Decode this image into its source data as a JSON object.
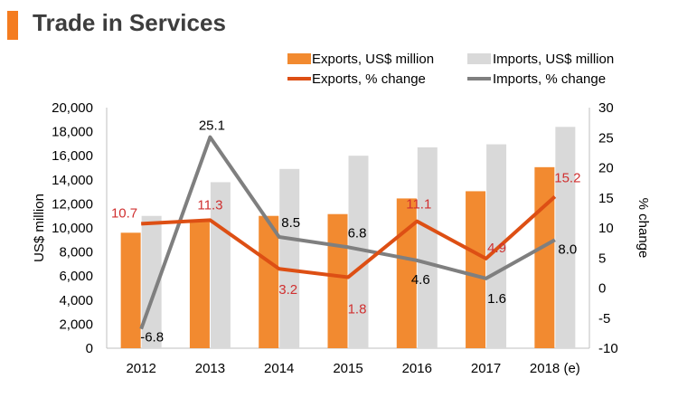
{
  "page": {
    "title": "Trade in Services"
  },
  "colors": {
    "exports": "#f28a30",
    "imports": "#d9d9d9",
    "exports_line": "#dd4f14",
    "imports_line": "#7f7f7f",
    "accent": "#f47c20",
    "label_red": "#d03030"
  },
  "chart_data": {
    "type": "bar",
    "categories": [
      "2012",
      "2013",
      "2014",
      "2015",
      "2016",
      "2017",
      "2018 (e)"
    ],
    "series": [
      {
        "name": "Exports, US$ million",
        "type": "bar",
        "axis": "left",
        "values": [
          9600,
          10650,
          11000,
          11150,
          12450,
          13050,
          15050
        ]
      },
      {
        "name": "Imports, US$ million",
        "type": "bar",
        "axis": "left",
        "values": [
          11000,
          13800,
          14900,
          16000,
          16700,
          16950,
          18400
        ]
      },
      {
        "name": "Exports, % change",
        "type": "line",
        "axis": "right",
        "values": [
          10.7,
          11.3,
          3.2,
          1.8,
          11.1,
          4.9,
          15.2
        ],
        "labels": [
          "10.7",
          "11.3",
          "3.2",
          "1.8",
          "11.1",
          "4.9",
          "15.2"
        ]
      },
      {
        "name": "Imports, % change",
        "type": "line",
        "axis": "right",
        "values": [
          -6.8,
          25.1,
          8.5,
          6.8,
          4.6,
          1.6,
          8.0
        ],
        "labels": [
          "-6.8",
          "25.1",
          "8.5",
          "6.8",
          "4.6",
          "1.6",
          "8.0"
        ]
      }
    ],
    "ylabel": "US$ million",
    "ylabel_right": "% change",
    "ylim": [
      0,
      20000
    ],
    "ylim_right": [
      -10,
      30
    ],
    "yticks": [
      "0",
      "2,000",
      "4,000",
      "6,000",
      "8,000",
      "10,000",
      "12,000",
      "14,000",
      "16,000",
      "18,000",
      "20,000"
    ],
    "yticks_right": [
      "-10",
      "-5",
      "0",
      "5",
      "10",
      "15",
      "20",
      "25",
      "30"
    ],
    "legend_position": "top-right"
  }
}
